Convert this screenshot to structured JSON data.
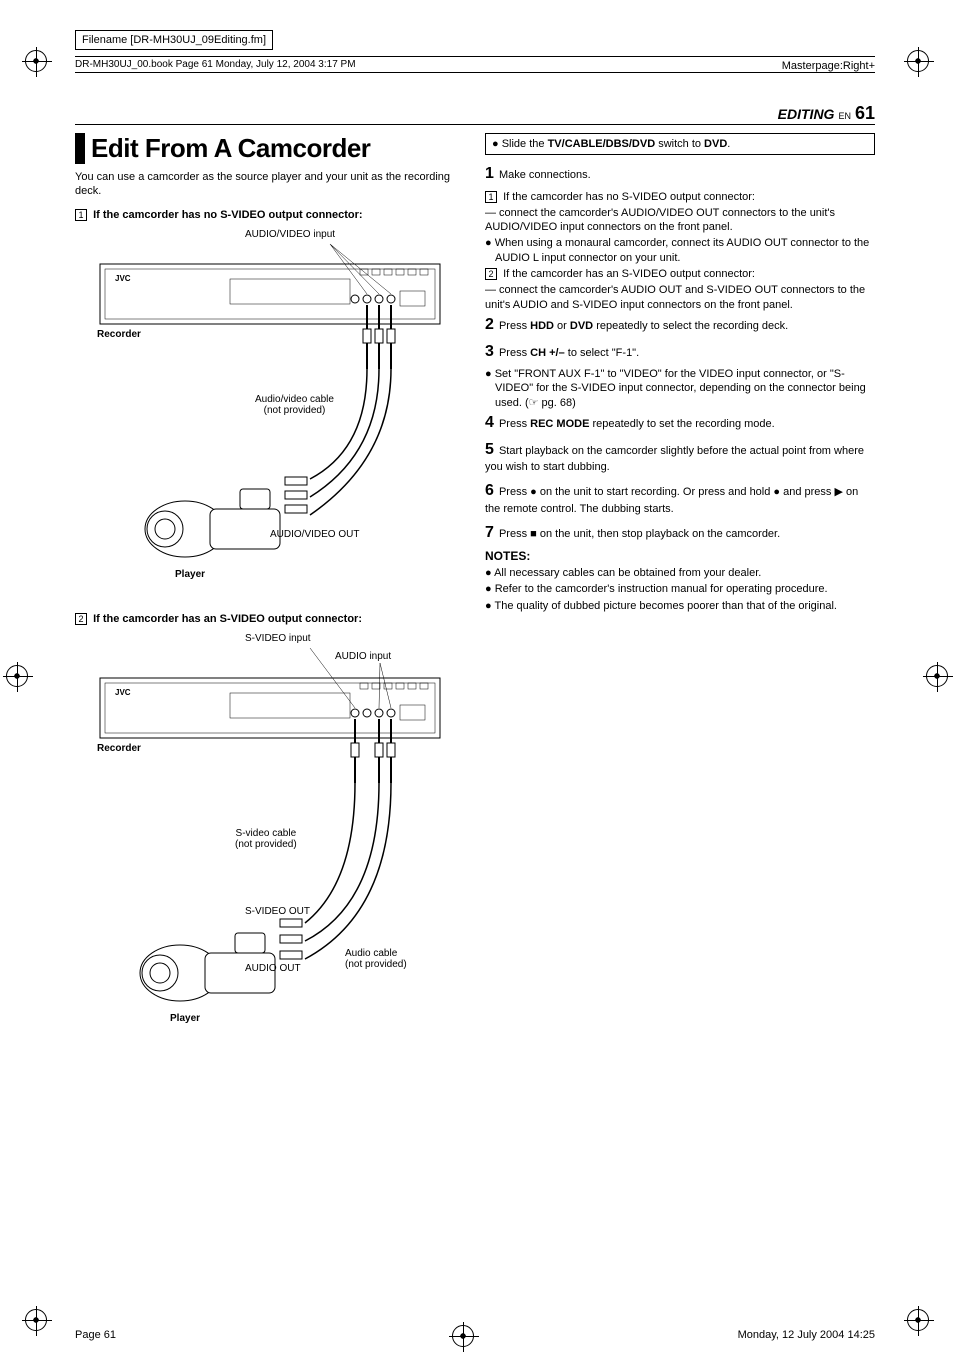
{
  "meta": {
    "filename_label": "Filename [DR-MH30UJ_09Editing.fm]",
    "bookinfo": "DR-MH30UJ_00.book  Page 61  Monday, July 12, 2004  3:17 PM",
    "masterpage": "Masterpage:Right+",
    "section_label": "EDITING",
    "en": "EN",
    "page_no": "61",
    "footer_left": "Page 61",
    "footer_right": "Monday, 12 July 2004  14:25"
  },
  "left": {
    "title": "Edit From A Camcorder",
    "intro": "You can use a camcorder as the source player and your unit as the recording deck.",
    "sub1_num": "1",
    "sub1": "If the camcorder has no S-VIDEO output connector:",
    "sub2_num": "2",
    "sub2": "If the camcorder has an S-VIDEO output connector:",
    "diagram1": {
      "av_input": "AUDIO/VIDEO input",
      "recorder": "Recorder",
      "jvc": "JVC",
      "cable": "Audio/video cable\n(not provided)",
      "av_out": "AUDIO/VIDEO OUT",
      "player": "Player"
    },
    "diagram2": {
      "svideo_input": "S-VIDEO input",
      "audio_input": "AUDIO input",
      "recorder": "Recorder",
      "jvc": "JVC",
      "svcable": "S-video cable\n(not provided)",
      "svideo_out": "S-VIDEO OUT",
      "audio_out": "AUDIO OUT",
      "audio_cable": "Audio cable\n(not provided)",
      "player": "Player"
    }
  },
  "right": {
    "box_line": "● Slide the <b>TV/CABLE/DBS/DVD</b> switch to <b>DVD</b>.",
    "step1_num": "1",
    "step1": "Make connections.",
    "s1_box1": "1",
    "s1_l1": "If the camcorder has no S-VIDEO output connector:",
    "s1_l2": "— connect the camcorder's AUDIO/VIDEO OUT connectors to the unit's AUDIO/VIDEO input connectors on the front panel.",
    "s1_l3": "● When using a monaural camcorder, connect its AUDIO OUT connector to the AUDIO L input connector on your unit.",
    "s1_box2": "2",
    "s1_l4": "If the camcorder has an S-VIDEO output connector:",
    "s1_l5": "— connect the camcorder's AUDIO OUT and S-VIDEO OUT connectors to the unit's AUDIO and S-VIDEO input connectors on the front panel.",
    "step2_num": "2",
    "step2": "Press <b>HDD</b> or <b>DVD</b> repeatedly to select the recording deck.",
    "step3_num": "3",
    "step3": "Press <b>CH +/–</b> to select \"F-1\".",
    "step3_b": "● Set \"FRONT AUX F-1\" to \"VIDEO\" for the VIDEO input connector, or \"S-VIDEO\" for the S-VIDEO input connector, depending on the connector being used. (☞ pg. 68)",
    "step4_num": "4",
    "step4": "Press <b>REC MODE</b> repeatedly to set the recording mode.",
    "step5_num": "5",
    "step5": "Start playback on the camcorder slightly before the actual point from where you wish to start dubbing.",
    "step6_num": "6",
    "step6": "Press ● on the unit to start recording. Or press and hold ● and press ▶ on the remote control. The dubbing starts.",
    "step7_num": "7",
    "step7": "Press ■ on the unit, then stop playback on the camcorder.",
    "notes_h": "NOTES:",
    "note1": "● All necessary cables can be obtained from your dealer.",
    "note2": "● Refer to the camcorder's instruction manual for operating procedure.",
    "note3": "● The quality of dubbed picture becomes poorer than that of the original."
  },
  "colors": {
    "text": "#000000",
    "bg": "#ffffff",
    "line": "#000000"
  }
}
